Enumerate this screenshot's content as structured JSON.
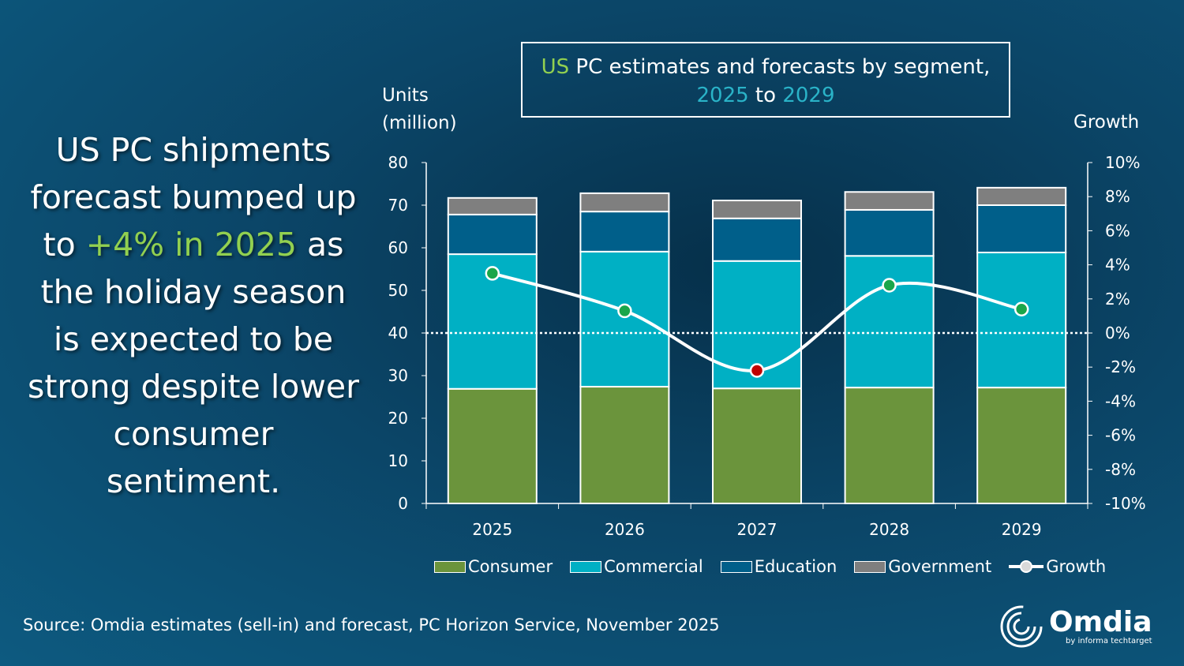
{
  "headline": {
    "part1": "US PC shipments forecast bumped up to ",
    "highlight": "+4% in 2025",
    "part2": " as the holiday season is expected to be strong despite lower consumer sentiment."
  },
  "title": {
    "p1": "US",
    "p2": " PC estimates and forecasts by segment,",
    "p3": "2025",
    "p4": " to ",
    "p5": "2029"
  },
  "source": "Source: Omdia estimates (sell-in) and forecast, PC Horizon Service, November 2025",
  "logo": {
    "name": "Omdia",
    "sub": "by informa techtarget"
  },
  "colors": {
    "consumer": "#6b943c",
    "commercial": "#00b0c4",
    "education": "#005f8a",
    "government": "#7f7f7f",
    "growth_pos": "#1aa64a",
    "growth_neg": "#c00000"
  },
  "chart_data": {
    "type": "bar",
    "stacked": true,
    "title": "US PC estimates and forecasts by segment, 2025 to 2029",
    "ylabel": "Units (million)",
    "y2label": "Growth",
    "categories": [
      "2025",
      "2026",
      "2027",
      "2028",
      "2029"
    ],
    "ylim": [
      0,
      80
    ],
    "yticks": [
      "0",
      "10",
      "20",
      "30",
      "40",
      "50",
      "60",
      "70",
      "80"
    ],
    "y2lim": [
      -10,
      10
    ],
    "y2ticks": [
      "-10%",
      "-8%",
      "-6%",
      "-4%",
      "-2%",
      "0%",
      "2%",
      "4%",
      "6%",
      "8%",
      "10%"
    ],
    "series": [
      {
        "name": "Consumer",
        "key": "consumer",
        "values": [
          26.9,
          27.4,
          27.0,
          27.2,
          27.2
        ]
      },
      {
        "name": "Commercial",
        "key": "commercial",
        "values": [
          31.6,
          31.7,
          29.9,
          30.9,
          31.7
        ]
      },
      {
        "name": "Education",
        "key": "education",
        "values": [
          9.3,
          9.4,
          10.0,
          10.8,
          11.1
        ]
      },
      {
        "name": "Government",
        "key": "government",
        "values": [
          3.9,
          4.3,
          4.2,
          4.2,
          4.1
        ]
      }
    ],
    "line": {
      "name": "Growth",
      "values": [
        3.5,
        1.3,
        -2.2,
        2.8,
        1.4
      ],
      "unit": "%"
    }
  }
}
